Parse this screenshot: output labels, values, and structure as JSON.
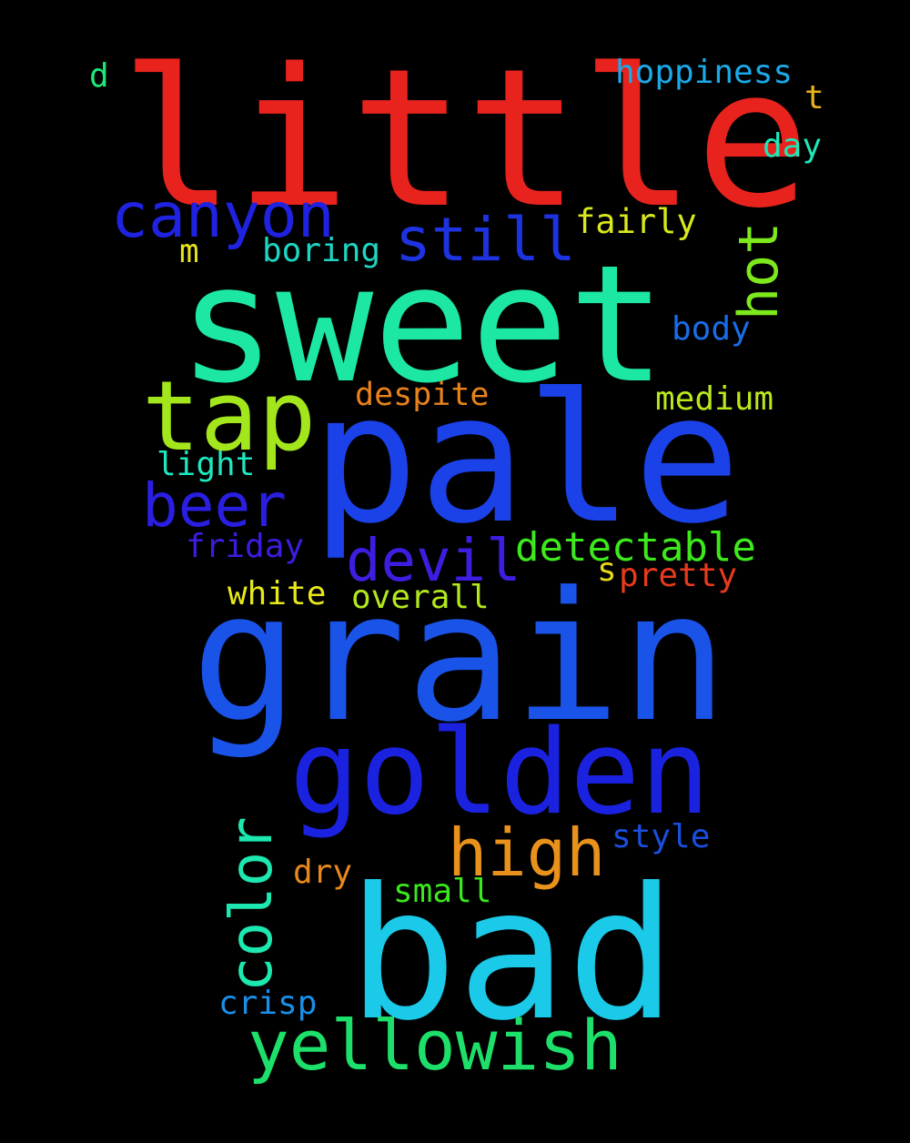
{
  "background": "#000000",
  "words": [
    {
      "text": "little",
      "color": "#e8231d",
      "rotated": false
    },
    {
      "text": "sweet",
      "color": "#1de8a3",
      "rotated": false
    },
    {
      "text": "pale",
      "color": "#1a42e8",
      "rotated": false
    },
    {
      "text": "grain",
      "color": "#1a53e8",
      "rotated": false
    },
    {
      "text": "bad",
      "color": "#1bc9e8",
      "rotated": false
    },
    {
      "text": "golden",
      "color": "#1a22e0",
      "rotated": false
    },
    {
      "text": "tap",
      "color": "#a3e61c",
      "rotated": false
    },
    {
      "text": "yellowish",
      "color": "#1de06a",
      "rotated": false
    },
    {
      "text": "canyon",
      "color": "#1f22e0",
      "rotated": false
    },
    {
      "text": "high",
      "color": "#e8921c",
      "rotated": false
    },
    {
      "text": "beer",
      "color": "#2a1ee0",
      "rotated": false
    },
    {
      "text": "devil",
      "color": "#3d1ee0",
      "rotated": false
    },
    {
      "text": "still",
      "color": "#1e33e0",
      "rotated": false
    },
    {
      "text": "color",
      "color": "#1de8b0",
      "rotated": true
    },
    {
      "text": "hot",
      "color": "#7de81c",
      "rotated": true
    },
    {
      "text": "detectable",
      "color": "#3de81c",
      "rotated": false
    },
    {
      "text": "hoppiness",
      "color": "#1ca9e8",
      "rotated": false
    },
    {
      "text": "fairly",
      "color": "#d8e81c",
      "rotated": false
    },
    {
      "text": "boring",
      "color": "#1dd6c3",
      "rotated": false
    },
    {
      "text": "body",
      "color": "#1a6ce8",
      "rotated": false
    },
    {
      "text": "despite",
      "color": "#e8821c",
      "rotated": false
    },
    {
      "text": "medium",
      "color": "#b9e81c",
      "rotated": false
    },
    {
      "text": "light",
      "color": "#1de8c0",
      "rotated": false
    },
    {
      "text": "friday",
      "color": "#3a1ee0",
      "rotated": false
    },
    {
      "text": "pretty",
      "color": "#e83a1c",
      "rotated": false
    },
    {
      "text": "white",
      "color": "#e6e81c",
      "rotated": false
    },
    {
      "text": "overall",
      "color": "#b2e81c",
      "rotated": false
    },
    {
      "text": "style",
      "color": "#1a4ee0",
      "rotated": false
    },
    {
      "text": "dry",
      "color": "#e8881c",
      "rotated": false
    },
    {
      "text": "small",
      "color": "#3ae81c",
      "rotated": false
    },
    {
      "text": "crisp",
      "color": "#1a8fe8",
      "rotated": false
    },
    {
      "text": "day",
      "color": "#1de8b8",
      "rotated": false
    },
    {
      "text": "d",
      "color": "#1de879",
      "rotated": false
    },
    {
      "text": "t",
      "color": "#e8b21c",
      "rotated": false
    },
    {
      "text": "m",
      "color": "#e8e21c",
      "rotated": false
    },
    {
      "text": "s",
      "color": "#e8d81c",
      "rotated": false
    }
  ]
}
